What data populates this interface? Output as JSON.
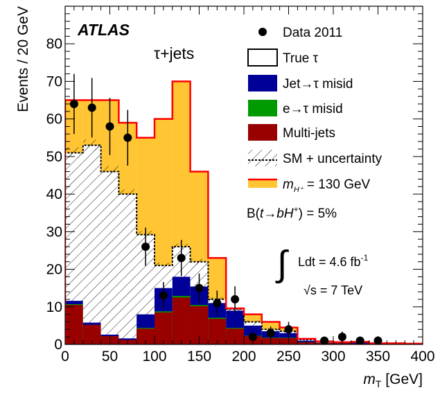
{
  "chart_data": {
    "type": "bar",
    "xlabel_main": "m",
    "xlabel_sub": "T",
    "xlabel_unit": " [GeV]",
    "ylabel": "Events / 20 GeV",
    "xlim": [
      0,
      400
    ],
    "ylim": [
      0,
      90
    ],
    "x_ticks": [
      0,
      50,
      100,
      150,
      200,
      250,
      300,
      350,
      400
    ],
    "y_ticks": [
      0,
      10,
      20,
      30,
      40,
      50,
      60,
      70,
      80
    ],
    "bin_edges": [
      0,
      20,
      40,
      60,
      80,
      100,
      120,
      140,
      160,
      180,
      200,
      220,
      240,
      260,
      280,
      300,
      320,
      340,
      360,
      380,
      400
    ],
    "series": [
      {
        "name": "Multi-jets",
        "color": "#990000",
        "values": [
          10.5,
          5.2,
          2.2,
          1.2,
          4.2,
          8.5,
          12.5,
          10.2,
          6.8,
          4.2,
          2.2,
          1.7,
          1.7,
          0.6,
          0.4,
          0.3,
          0.2,
          0.2,
          0.2,
          0.2
        ]
      },
      {
        "name": "e→τ misid",
        "color": "#009900",
        "values": [
          0.2,
          0.0,
          0.0,
          0.0,
          0.2,
          0.3,
          0.4,
          0.3,
          0.3,
          0.2,
          0.1,
          0.1,
          0.1,
          0.0,
          0.0,
          0.0,
          0.0,
          0.0,
          0.0,
          0.0
        ]
      },
      {
        "name": "Jet→τ misid",
        "color": "#000099",
        "values": [
          0.9,
          0.6,
          0.4,
          0.4,
          3.6,
          6.2,
          5.1,
          4.9,
          3.9,
          4.6,
          2.7,
          1.7,
          1.2,
          0.4,
          0.1,
          0.1,
          0.3,
          0.0,
          0.0,
          0.0
        ]
      },
      {
        "name": "True τ",
        "color": "#ffffff",
        "values": [
          39.4,
          47.1,
          43.4,
          38.4,
          21.2,
          6.0,
          8.0,
          6.6,
          1.0,
          0.4,
          1.0,
          0.5,
          0.5,
          0.3,
          0.3,
          0.2,
          0.2,
          0.1,
          0.1,
          0.0
        ]
      }
    ],
    "sm_total": [
      51.0,
      53.0,
      46.0,
      40.0,
      29.2,
      21.0,
      26.0,
      22.0,
      12.0,
      9.4,
      6.0,
      4.0,
      3.5,
      1.3,
      0.8,
      0.6,
      0.7,
      0.3,
      0.3,
      0.2
    ],
    "sm_uncertainty": [
      1.5,
      1.5,
      1.5,
      1.2,
      1.0,
      0.8,
      0.8,
      0.8,
      0.6,
      0.5,
      0.4,
      0.3,
      0.3,
      0.2,
      0.2,
      0.1,
      0.1,
      0.1,
      0.1,
      0.1
    ],
    "signal_total": [
      65.0,
      65.0,
      65.0,
      59.0,
      55.0,
      60.0,
      70.0,
      46.0,
      23.0,
      9.6,
      8.0,
      6.0,
      4.5,
      1.5,
      0.8,
      0.6,
      0.7,
      0.3,
      0.3,
      0.2
    ],
    "data": {
      "name": "Data 2011",
      "x": [
        10,
        30,
        50,
        70,
        90,
        110,
        130,
        150,
        170,
        190,
        210,
        230,
        250,
        270,
        290,
        310,
        330,
        350,
        370,
        390
      ],
      "y": [
        64,
        63,
        58,
        55,
        26,
        13,
        23,
        15,
        11,
        12,
        2,
        3,
        4,
        0,
        1,
        2,
        1,
        1,
        0,
        0
      ]
    },
    "legend": [
      {
        "label": "Data 2011",
        "kind": "data"
      },
      {
        "label": "True τ",
        "kind": "true-tau"
      },
      {
        "label": "Jet→τ misid",
        "kind": "jet-misid"
      },
      {
        "label": "e→τ misid",
        "kind": "e-misid"
      },
      {
        "label": "Multi-jets",
        "kind": "multijets"
      },
      {
        "label": "SM + uncertainty",
        "kind": "sm"
      },
      {
        "label": "= 130 GeV",
        "kind": "signal"
      }
    ],
    "signal_label_m": "m",
    "signal_label_sub": "H⁺",
    "signal_color": "#ffc533",
    "signal_line_color": "#ff0000",
    "atlas_label": "ATLAS",
    "channel_label": "τ+jets",
    "branching": {
      "prefix": "B(",
      "t": "t",
      "arrow": "→",
      "b": "b",
      "H": "H",
      "sup": "+",
      "suffix": ") = 5%"
    },
    "lumi": {
      "text": "Ldt = 4.6 fb",
      "sup": "-1"
    },
    "energy": {
      "sqrt": "√s",
      "rest": " = 7 TeV"
    }
  }
}
